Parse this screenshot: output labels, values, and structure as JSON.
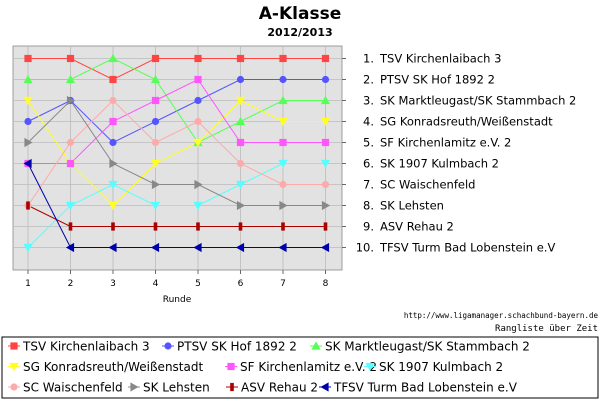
{
  "chart_data": {
    "type": "line",
    "title": "A-Klasse",
    "subtitle": "2012/2013",
    "xlabel": "Runde",
    "ylabel": "",
    "x": [
      1,
      2,
      3,
      4,
      5,
      6,
      7,
      8
    ],
    "ylim": [
      1,
      10
    ],
    "y_inverted": true,
    "grid": true,
    "rank_labels": [
      "1. TSV Kirchenlaibach 3",
      "2. PTSV SK Hof 1892 2",
      "3. SK Marktleugast/SK Stammbach 2",
      "4. SG Konradsreuth/Weißenstadt",
      "5. SF Kirchenlamitz e.V. 2",
      "6. SK 1907 Kulmbach 2",
      "7. SC Waischenfeld",
      "8. SK Lehsten",
      "9. ASV Rehau 2",
      "10. TFSV Turm Bad Lobenstein e.V"
    ],
    "series": [
      {
        "name": "TSV Kirchenlaibach 3",
        "color": "#ff4444",
        "marker": "square",
        "values": [
          1,
          1,
          2,
          1,
          1,
          1,
          1,
          1
        ]
      },
      {
        "name": "PTSV SK Hof 1892 2",
        "color": "#5555ff",
        "marker": "circle",
        "values": [
          4,
          3,
          5,
          4,
          3,
          2,
          2,
          2
        ]
      },
      {
        "name": "SK Marktleugast/SK Stammbach 2",
        "color": "#55ff55",
        "marker": "triangle-up",
        "values": [
          2,
          2,
          1,
          2,
          5,
          4,
          3,
          3
        ]
      },
      {
        "name": "SG Konradsreuth/Weißenstadt",
        "color": "#ffff22",
        "marker": "triangle-down",
        "values": [
          3,
          6,
          8,
          6,
          5,
          3,
          4,
          4
        ]
      },
      {
        "name": "SF Kirchenlamitz e.V. 2",
        "color": "#ff55ff",
        "marker": "square",
        "values": [
          6,
          6,
          4,
          3,
          2,
          5,
          5,
          5
        ]
      },
      {
        "name": "SK 1907 Kulmbach 2",
        "color": "#55ffff",
        "marker": "triangle-down",
        "values": [
          10,
          8,
          7,
          8,
          8,
          7,
          6,
          6
        ]
      },
      {
        "name": "SC Waischenfeld",
        "color": "#ffaaaa",
        "marker": "circle",
        "values": [
          8,
          5,
          3,
          5,
          4,
          6,
          7,
          7
        ]
      },
      {
        "name": "SK Lehsten",
        "color": "#888888",
        "marker": "triangle-right",
        "values": [
          5,
          3,
          6,
          7,
          7,
          8,
          8,
          8
        ]
      },
      {
        "name": "ASV Rehau 2",
        "color": "#aa0000",
        "marker": "bar",
        "values": [
          8,
          9,
          9,
          9,
          9,
          9,
          9,
          9
        ]
      },
      {
        "name": "TFSV Turm Bad Lobenstein e.V",
        "color": "#0000aa",
        "marker": "triangle-left",
        "values": [
          6,
          10,
          10,
          10,
          10,
          10,
          10,
          10
        ]
      }
    ]
  },
  "source_url": "http://www.ligamanager.schachbund-bayern.de",
  "caption": "Rangliste über Zeit"
}
